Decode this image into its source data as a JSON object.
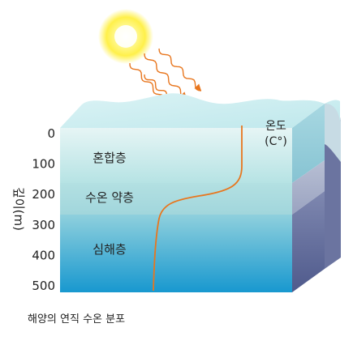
{
  "diagram": {
    "layers": [
      {
        "id": "mixed",
        "label": "혼합층"
      },
      {
        "id": "thermocline",
        "label": "수온 약층"
      },
      {
        "id": "deep",
        "label": "심해층"
      }
    ],
    "depth_axis": {
      "label": "깊이(m)",
      "unit": "m",
      "ticks": [
        "0",
        "100",
        "200",
        "300",
        "400",
        "500"
      ],
      "tick_values": [
        0,
        100,
        200,
        300,
        400,
        500
      ]
    },
    "temperature_label": {
      "line1": "온도",
      "line2": "(C°)"
    },
    "temperature_profile": {
      "description_values": [
        {
          "depth": 0,
          "temp_rel": 1.0
        },
        {
          "depth": 150,
          "temp_rel": 0.98
        },
        {
          "depth": 200,
          "temp_rel": 0.85
        },
        {
          "depth": 250,
          "temp_rel": 0.18
        },
        {
          "depth": 300,
          "temp_rel": 0.1
        },
        {
          "depth": 500,
          "temp_rel": 0.08
        }
      ],
      "color": "#e8761e"
    },
    "sun": {
      "color": "#fff04a"
    },
    "colors": {
      "surface": "#cdeff2",
      "mixed_top": "#e6f5f5",
      "mixed_bottom": "#b6e3e4",
      "thermo": "#a6dadb",
      "deep_top": "#8fd0dd",
      "deep_bottom": "#1898cf",
      "side_mixed": "#8fc9d6",
      "side_thermo": "#9aa3c0",
      "side_deep": "#5d6796",
      "rays": "#e8761e"
    }
  },
  "caption": "해양의 연직 수온 분포"
}
